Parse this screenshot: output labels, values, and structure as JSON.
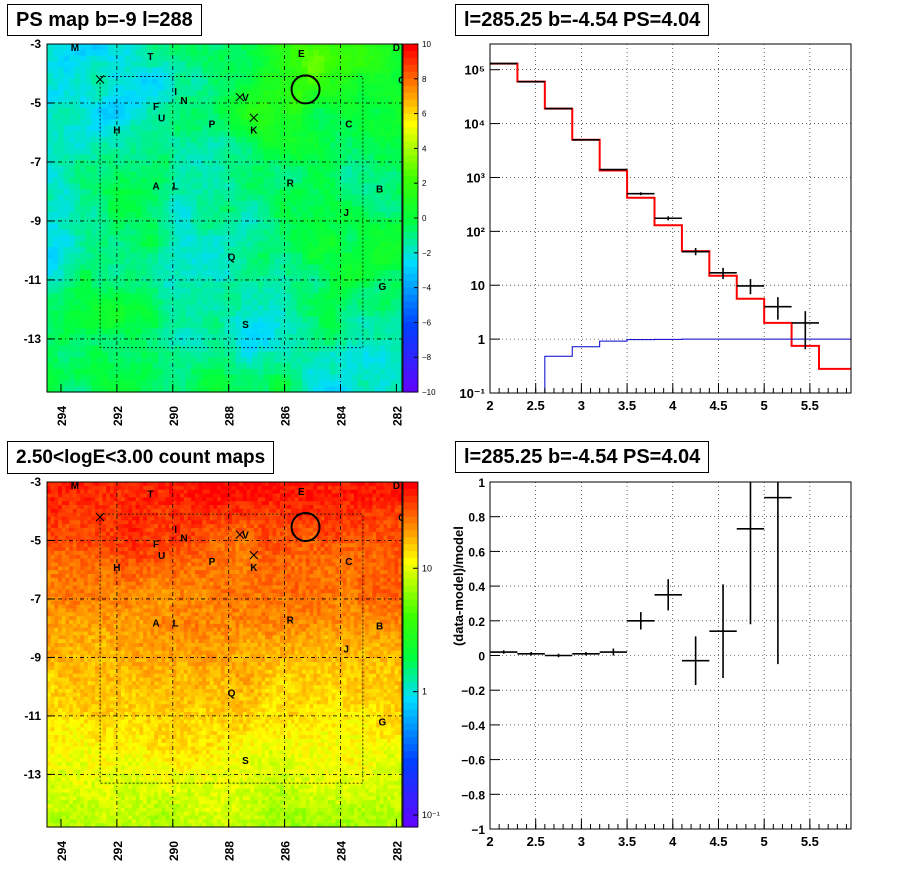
{
  "panels": {
    "tl": {
      "title": "PS map b=-9 l=288"
    },
    "tr": {
      "title": "l=285.25 b=-4.54 PS=4.04"
    },
    "bl": {
      "title": "2.50<logE<3.00 count maps"
    },
    "br": {
      "title": "l=285.25 b=-4.54 PS=4.04"
    }
  },
  "chart_data": [
    {
      "type": "heatmap",
      "title": "PS map b=-9 l=288",
      "x_ticks": [
        "294",
        "292",
        "290",
        "288",
        "286",
        "284",
        "282"
      ],
      "y_ticks": [
        "-3",
        "-5",
        "-7",
        "-9",
        "-11",
        "-13"
      ],
      "xlim": [
        294.5,
        281.8
      ],
      "ylim": [
        -14.8,
        -3
      ],
      "grid": true,
      "colorbar": {
        "min": -10,
        "max": 10,
        "ticks": [
          "10",
          "8",
          "6",
          "4",
          "2",
          "0",
          "−2",
          "−4",
          "−6",
          "−8",
          "−10"
        ],
        "scale": "linear"
      },
      "colors": {
        "low": "#6a00ff",
        "mid": "#00ff00",
        "high": "#ff0000"
      },
      "source_labels": [
        {
          "t": "M",
          "l": 293.5,
          "b": -3.1
        },
        {
          "t": "T",
          "l": 290.8,
          "b": -3.4
        },
        {
          "t": "E",
          "l": 285.4,
          "b": -3.3
        },
        {
          "t": "D",
          "l": 282.0,
          "b": -3.1
        },
        {
          "t": "O",
          "l": 281.8,
          "b": -4.2
        },
        {
          "t": "I",
          "l": 289.9,
          "b": -4.6
        },
        {
          "t": "F",
          "l": 290.6,
          "b": -5.1
        },
        {
          "t": "N",
          "l": 289.6,
          "b": -4.9
        },
        {
          "t": "V",
          "l": 287.4,
          "b": -4.8
        },
        {
          "t": "U",
          "l": 290.4,
          "b": -5.5
        },
        {
          "t": "P",
          "l": 288.6,
          "b": -5.7
        },
        {
          "t": "K",
          "l": 287.1,
          "b": -5.9
        },
        {
          "t": "C",
          "l": 283.7,
          "b": -5.7
        },
        {
          "t": "H",
          "l": 292.0,
          "b": -5.9
        },
        {
          "t": "A",
          "l": 290.6,
          "b": -7.8
        },
        {
          "t": "L",
          "l": 289.9,
          "b": -7.8
        },
        {
          "t": "R",
          "l": 285.8,
          "b": -7.7
        },
        {
          "t": "B",
          "l": 282.6,
          "b": -7.9
        },
        {
          "t": "J",
          "l": 283.8,
          "b": -8.7
        },
        {
          "t": "Q",
          "l": 287.9,
          "b": -10.2
        },
        {
          "t": "G",
          "l": 282.5,
          "b": -11.2
        },
        {
          "t": "S",
          "l": 287.4,
          "b": -12.5
        }
      ],
      "crosses": [
        {
          "l": 292.6,
          "b": -4.2
        },
        {
          "l": 287.6,
          "b": -4.8
        },
        {
          "l": 287.1,
          "b": -5.5
        }
      ],
      "circle": {
        "l": 285.25,
        "b": -4.54
      }
    },
    {
      "type": "line",
      "title": "l=285.25 b=-4.54 PS=4.04",
      "xlabel": "",
      "ylabel": "",
      "xlim": [
        2,
        5.95
      ],
      "ylim": [
        0.1,
        300000
      ],
      "log_y": true,
      "grid": true,
      "x_ticks": [
        "2",
        "2.5",
        "3",
        "3.5",
        "4",
        "4.5",
        "5",
        "5.5"
      ],
      "y_ticks": [
        "10⁻¹",
        "1",
        "10",
        "10²",
        "10³",
        "10⁴",
        "10⁵"
      ],
      "series": [
        {
          "color": "#ff0000",
          "edges": [
            2,
            2.3,
            2.6,
            2.9,
            3.2,
            3.5,
            3.8,
            4.1,
            4.4,
            4.7,
            5.0,
            5.3,
            5.6,
            5.95
          ],
          "values": [
            130000,
            60000,
            19000,
            5000,
            1350,
            420,
            130,
            43,
            15,
            5.6,
            2.0,
            0.75,
            0.28
          ]
        },
        {
          "color": "#0000cc",
          "edges": [
            2.6,
            2.9,
            3.2,
            3.5,
            3.8,
            4.1,
            4.4,
            4.7,
            5.0,
            5.3,
            5.6,
            5.95
          ],
          "values": [
            0.48,
            0.72,
            0.92,
            0.98,
            0.99,
            1.0,
            1.0,
            1.0,
            1.0,
            1.0,
            1.0
          ]
        },
        {
          "color": "#000000",
          "points": [
            {
              "x": 2.15,
              "y": 130000,
              "xe": 0.15,
              "ylo": 128000,
              "yhi": 132000
            },
            {
              "x": 2.45,
              "y": 60000,
              "xe": 0.15,
              "ylo": 59000,
              "yhi": 61000
            },
            {
              "x": 2.75,
              "y": 19000,
              "xe": 0.15,
              "ylo": 18600,
              "yhi": 19400
            },
            {
              "x": 3.05,
              "y": 5000,
              "xe": 0.15,
              "ylo": 4900,
              "yhi": 5100
            },
            {
              "x": 3.35,
              "y": 1400,
              "xe": 0.15,
              "ylo": 1360,
              "yhi": 1440
            },
            {
              "x": 3.65,
              "y": 500,
              "xe": 0.15,
              "ylo": 470,
              "yhi": 530
            },
            {
              "x": 3.95,
              "y": 175,
              "xe": 0.15,
              "ylo": 160,
              "yhi": 190
            },
            {
              "x": 4.25,
              "y": 42,
              "xe": 0.15,
              "ylo": 36,
              "yhi": 49
            },
            {
              "x": 4.55,
              "y": 17,
              "xe": 0.15,
              "ylo": 13,
              "yhi": 21
            },
            {
              "x": 4.85,
              "y": 9.7,
              "xe": 0.15,
              "ylo": 6.8,
              "yhi": 13
            },
            {
              "x": 5.15,
              "y": 4.0,
              "xe": 0.15,
              "ylo": 2.3,
              "yhi": 6.0
            },
            {
              "x": 5.45,
              "y": 2.0,
              "xe": 0.15,
              "ylo": 0.65,
              "yhi": 3.3
            }
          ]
        }
      ]
    },
    {
      "type": "heatmap",
      "title": "2.50<logE<3.00 count maps",
      "x_ticks": [
        "294",
        "292",
        "290",
        "288",
        "286",
        "284",
        "282"
      ],
      "y_ticks": [
        "-3",
        "-5",
        "-7",
        "-9",
        "-11",
        "-13"
      ],
      "xlim": [
        294.5,
        281.8
      ],
      "ylim": [
        -14.8,
        -3
      ],
      "grid": true,
      "colorbar": {
        "scale": "log",
        "ticks": [
          "10",
          "1",
          "10⁻¹"
        ],
        "tick_values": [
          10,
          1,
          0.1
        ],
        "min": 0.08,
        "max": 50
      },
      "colors": {
        "low": "#9acd32",
        "mid": "#ffd700",
        "high": "#ff2200"
      },
      "source_labels": [
        {
          "t": "M",
          "l": 293.5,
          "b": -3.1
        },
        {
          "t": "T",
          "l": 290.8,
          "b": -3.4
        },
        {
          "t": "E",
          "l": 285.4,
          "b": -3.3
        },
        {
          "t": "D",
          "l": 282.0,
          "b": -3.1
        },
        {
          "t": "O",
          "l": 281.8,
          "b": -4.2
        },
        {
          "t": "I",
          "l": 289.9,
          "b": -4.6
        },
        {
          "t": "F",
          "l": 290.6,
          "b": -5.1
        },
        {
          "t": "N",
          "l": 289.6,
          "b": -4.9
        },
        {
          "t": "V",
          "l": 287.4,
          "b": -4.8
        },
        {
          "t": "U",
          "l": 290.4,
          "b": -5.5
        },
        {
          "t": "P",
          "l": 288.6,
          "b": -5.7
        },
        {
          "t": "K",
          "l": 287.1,
          "b": -5.9
        },
        {
          "t": "C",
          "l": 283.7,
          "b": -5.7
        },
        {
          "t": "H",
          "l": 292.0,
          "b": -5.9
        },
        {
          "t": "A",
          "l": 290.6,
          "b": -7.8
        },
        {
          "t": "L",
          "l": 289.9,
          "b": -7.8
        },
        {
          "t": "R",
          "l": 285.8,
          "b": -7.7
        },
        {
          "t": "B",
          "l": 282.6,
          "b": -7.9
        },
        {
          "t": "J",
          "l": 283.8,
          "b": -8.7
        },
        {
          "t": "Q",
          "l": 287.9,
          "b": -10.2
        },
        {
          "t": "G",
          "l": 282.5,
          "b": -11.2
        },
        {
          "t": "S",
          "l": 287.4,
          "b": -12.5
        }
      ],
      "crosses": [
        {
          "l": 292.6,
          "b": -4.2
        },
        {
          "l": 287.6,
          "b": -4.8
        },
        {
          "l": 287.1,
          "b": -5.5
        }
      ],
      "circle": {
        "l": 285.25,
        "b": -4.54
      }
    },
    {
      "type": "scatter",
      "title": "l=285.25 b=-4.54 PS=4.04",
      "xlabel": "",
      "ylabel": "(data-model)/model",
      "xlim": [
        2,
        5.95
      ],
      "ylim": [
        -1,
        1
      ],
      "grid": true,
      "x_ticks": [
        "2",
        "2.5",
        "3",
        "3.5",
        "4",
        "4.5",
        "5",
        "5.5"
      ],
      "y_ticks": [
        "−1",
        "−0.8",
        "−0.6",
        "−0.4",
        "−0.2",
        "0",
        "0.2",
        "0.4",
        "0.6",
        "0.8",
        "1"
      ],
      "points": [
        {
          "x": 2.15,
          "y": 0.02,
          "xe": 0.15,
          "ye": 0.01
        },
        {
          "x": 2.45,
          "y": 0.01,
          "xe": 0.15,
          "ye": 0.01
        },
        {
          "x": 2.75,
          "y": 0.0,
          "xe": 0.15,
          "ye": 0.01
        },
        {
          "x": 3.05,
          "y": 0.01,
          "xe": 0.15,
          "ye": 0.01
        },
        {
          "x": 3.35,
          "y": 0.02,
          "xe": 0.15,
          "ye": 0.02
        },
        {
          "x": 3.65,
          "y": 0.2,
          "xe": 0.15,
          "ye": 0.05
        },
        {
          "x": 3.95,
          "y": 0.35,
          "xe": 0.15,
          "ye": 0.09
        },
        {
          "x": 4.25,
          "y": -0.03,
          "xe": 0.15,
          "ye": 0.14
        },
        {
          "x": 4.55,
          "y": 0.14,
          "xe": 0.15,
          "ye": 0.27
        },
        {
          "x": 4.85,
          "y": 0.73,
          "xe": 0.15,
          "ye": 0.55
        },
        {
          "x": 5.15,
          "y": 0.91,
          "xe": 0.15,
          "ye": 0.96
        }
      ]
    }
  ]
}
